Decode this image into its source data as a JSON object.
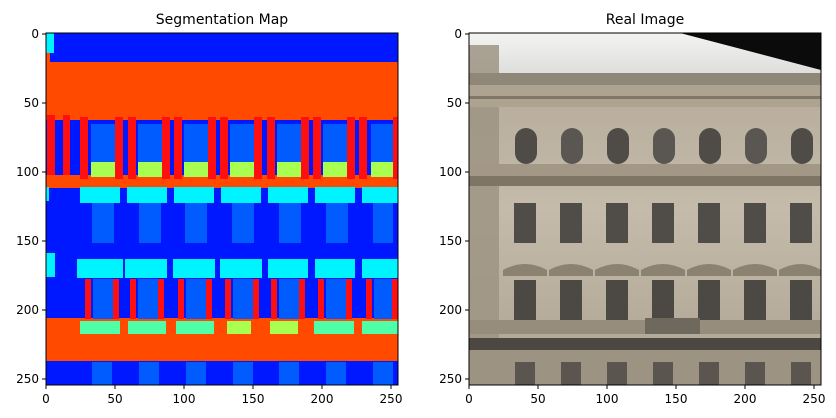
{
  "panels": [
    {
      "title": "Segmentation Map",
      "x_ticks": [
        "0",
        "50",
        "100",
        "150",
        "200",
        "250"
      ],
      "y_ticks": [
        "0",
        "50",
        "100",
        "150",
        "200",
        "250"
      ]
    },
    {
      "title": "Real Image",
      "x_ticks": [
        "0",
        "50",
        "100",
        "150",
        "200",
        "250"
      ],
      "y_ticks": [
        "0",
        "50",
        "100",
        "150",
        "200",
        "250"
      ]
    }
  ],
  "colors": {
    "seg_background": "#0018ff",
    "seg_orange": "#ff4a00",
    "seg_red": "#ff0f0f",
    "seg_window_blue": "#005cff",
    "seg_cyan": "#00f4ff",
    "seg_lime": "#a8ff4f",
    "seg_mint": "#4fffa8",
    "photo_sky": "#eeeeec",
    "photo_wall": "#bdb3a4",
    "photo_window": "#5e5a56"
  }
}
